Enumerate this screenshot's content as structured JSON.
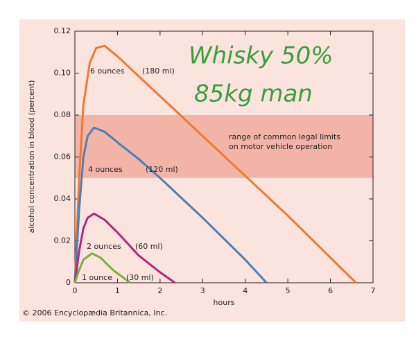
{
  "chart_data": {
    "type": "line",
    "x_label": "hours",
    "y_label": "alcohol concentration in blood (percent)",
    "credit": "© 2006 Encyclopædia Britannica, Inc.",
    "handwritten": [
      "Whisky 50%",
      "85kg man"
    ],
    "band": {
      "range": [
        0.05,
        0.08
      ],
      "color": "#f3b4a8",
      "label": [
        "range of common legal limits",
        "on motor vehicle operation"
      ]
    },
    "xlim": [
      0,
      7
    ],
    "xticks": [
      0,
      1,
      2,
      3,
      4,
      5,
      6,
      7
    ],
    "ylim": [
      0,
      0.12
    ],
    "yticks": [
      0,
      0.02,
      0.04,
      0.06,
      0.08,
      {
        "value": 0.1,
        "label": "0.10"
      },
      0.12
    ],
    "series": [
      {
        "name": "6 ounces",
        "volume": "(180 ml)",
        "color": "#f07830",
        "x": [
          0,
          0.1,
          0.2,
          0.35,
          0.5,
          0.7,
          1,
          2,
          3,
          4,
          5,
          6,
          6.6
        ],
        "values": [
          0,
          0.05,
          0.085,
          0.105,
          0.112,
          0.113,
          0.108,
          0.089,
          0.07,
          0.051,
          0.032,
          0.012,
          0
        ]
      },
      {
        "name": "4 ounces",
        "volume": "(120 ml)",
        "color": "#4a7fb5",
        "x": [
          0,
          0.1,
          0.2,
          0.3,
          0.45,
          0.7,
          1,
          1.5,
          2,
          3,
          4,
          4.5
        ],
        "values": [
          0,
          0.035,
          0.06,
          0.07,
          0.074,
          0.072,
          0.067,
          0.059,
          0.05,
          0.031,
          0.011,
          0
        ]
      },
      {
        "name": "2 ounces",
        "volume": "(60 ml)",
        "color": "#b0287a",
        "x": [
          0,
          0.1,
          0.2,
          0.3,
          0.45,
          0.7,
          1,
          1.5,
          2,
          2.35
        ],
        "values": [
          0,
          0.015,
          0.026,
          0.031,
          0.033,
          0.03,
          0.024,
          0.013,
          0.005,
          0
        ]
      },
      {
        "name": "1 ounce",
        "volume": "(30 ml)",
        "color": "#7ab040",
        "x": [
          0,
          0.1,
          0.2,
          0.4,
          0.6,
          0.9,
          1.3
        ],
        "values": [
          0,
          0.006,
          0.011,
          0.014,
          0.012,
          0.006,
          0
        ]
      }
    ]
  }
}
